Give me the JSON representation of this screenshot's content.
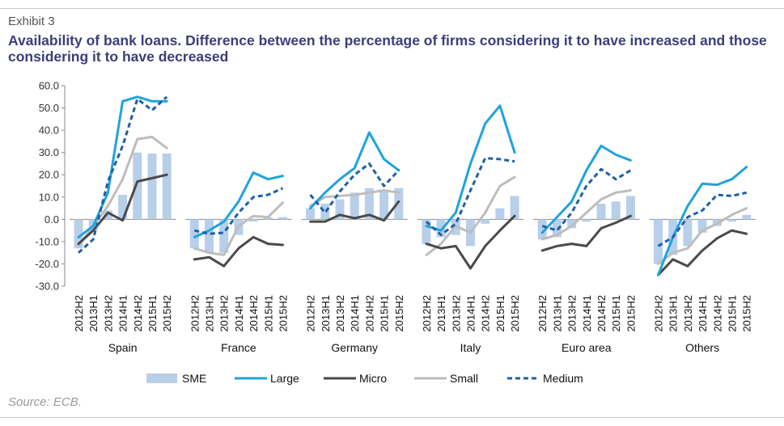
{
  "exhibit": "Exhibit 3",
  "title": "Availability of bank loans. Difference between the percentage of firms considering it to have increased and those considering it to have decreased",
  "source": "Source: ECB.",
  "colors": {
    "title": "#3b3e7a",
    "SME": "#b8cfea",
    "Large": "#1fa3dc",
    "Micro": "#4a4a4a",
    "Small": "#bdbdbd",
    "Medium": "#1f5fa8"
  },
  "chart_data": {
    "type": "bar",
    "title": "Availability of bank loans. Difference between the percentage of firms considering it to have increased and those considering it to have decreased",
    "ylim": [
      -30,
      60
    ],
    "yticks": [
      -30,
      -20,
      -10,
      0,
      10,
      20,
      30,
      40,
      50,
      60
    ],
    "ytick_labels": [
      "-30.0",
      "-20.0",
      "-10.0",
      "0.0",
      "10.0",
      "20.0",
      "30.0",
      "40.0",
      "50.0",
      "60.0"
    ],
    "grid": false,
    "legend_position": "bottom",
    "periods": [
      "2012H2",
      "2013H1",
      "2013H2",
      "2014H1",
      "2014H2",
      "2015H1",
      "2015H2"
    ],
    "groups": [
      {
        "name": "Spain",
        "SME": [
          -13,
          -5,
          4,
          11,
          30,
          29.5,
          29.5
        ],
        "Large": [
          -8,
          -3,
          12,
          53,
          55,
          53,
          53
        ],
        "Micro": [
          -11,
          -5,
          3,
          -0.5,
          17,
          18.5,
          20
        ],
        "Small": [
          -12,
          -3,
          6,
          18,
          36,
          37,
          32
        ],
        "Medium": [
          -15,
          -9,
          17,
          33,
          54,
          49,
          55
        ]
      },
      {
        "name": "France",
        "SME": [
          -13,
          -15,
          -15,
          -7,
          -1,
          1,
          1
        ],
        "Large": [
          -8,
          -5,
          -1,
          8,
          21,
          18,
          19.5
        ],
        "Micro": [
          -18,
          -17,
          -21,
          -13,
          -8,
          -11,
          -11.5
        ],
        "Small": [
          -13,
          -15,
          -16,
          -3,
          1.5,
          1,
          7.5
        ],
        "Medium": [
          -5,
          -6.5,
          -6,
          3,
          10,
          11,
          14
        ]
      },
      {
        "name": "Germany",
        "SME": [
          5,
          7,
          9,
          12,
          14,
          13,
          14
        ],
        "Large": [
          5,
          12,
          18,
          23,
          39,
          27,
          22
        ],
        "Micro": [
          -1,
          -1,
          2,
          0.5,
          2,
          -0.5,
          8
        ],
        "Small": [
          6,
          10,
          10.5,
          11,
          12,
          13,
          12
        ],
        "Medium": [
          11,
          3,
          12.5,
          20,
          25,
          15,
          22
        ]
      },
      {
        "name": "Italy",
        "SME": [
          -11,
          -8,
          -7,
          -12,
          -2,
          5,
          10.5
        ],
        "Large": [
          -3,
          -5,
          3,
          25,
          43,
          51,
          30
        ],
        "Micro": [
          -11,
          -13,
          -12,
          -22,
          -12,
          -5,
          1.5
        ],
        "Small": [
          -16,
          -11,
          -3,
          -6,
          3,
          15,
          19
        ],
        "Medium": [
          -1,
          -7,
          -2,
          13,
          27.5,
          27,
          26
        ]
      },
      {
        "name": "Euro area",
        "SME": [
          -9,
          -8,
          -4,
          -1,
          7,
          8,
          10.5
        ],
        "Large": [
          -6,
          1,
          8,
          22,
          33,
          29,
          26.5
        ],
        "Micro": [
          -14,
          -12,
          -11,
          -12,
          -4,
          -1.5,
          1.5
        ],
        "Small": [
          -9,
          -7,
          -3,
          3,
          9,
          12,
          13
        ],
        "Medium": [
          -3,
          -5,
          3,
          15,
          22.5,
          18,
          22
        ]
      },
      {
        "name": "Others",
        "SME": [
          -20,
          -16,
          -12,
          -6,
          -3,
          -1,
          2
        ],
        "Large": [
          -25,
          -8,
          6,
          16,
          15.5,
          18,
          23.5
        ],
        "Micro": [
          -25,
          -18,
          -21,
          -14,
          -8.5,
          -5,
          -6.5
        ],
        "Small": [
          -20,
          -15,
          -13,
          -5,
          -2,
          2,
          5
        ],
        "Medium": [
          -12,
          -8,
          1,
          4,
          11,
          10.5,
          12
        ]
      }
    ],
    "series": [
      {
        "name": "SME",
        "type": "bar"
      },
      {
        "name": "Large",
        "type": "line",
        "style": "solid"
      },
      {
        "name": "Micro",
        "type": "line",
        "style": "solid"
      },
      {
        "name": "Small",
        "type": "line",
        "style": "solid"
      },
      {
        "name": "Medium",
        "type": "line",
        "style": "dashed"
      }
    ]
  }
}
